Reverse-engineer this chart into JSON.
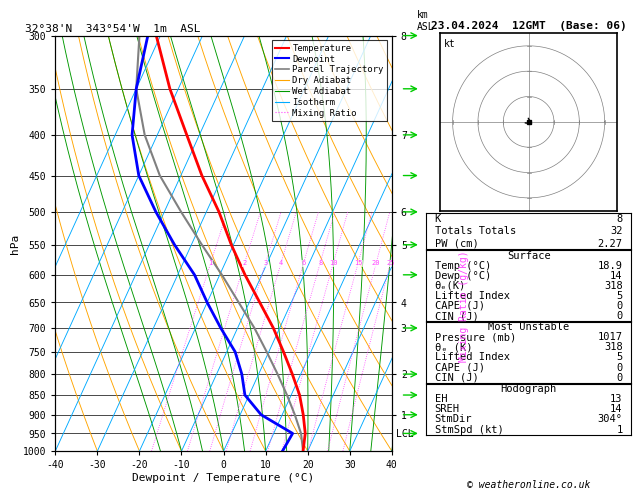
{
  "title_left": "32°38'N  343°54'W  1m  ASL",
  "title_right": "23.04.2024  12GMT  (Base: 06)",
  "xlabel": "Dewpoint / Temperature (°C)",
  "pressure_levels": [
    300,
    350,
    400,
    450,
    500,
    550,
    600,
    650,
    700,
    750,
    800,
    850,
    900,
    950,
    1000
  ],
  "lcl_pressure": 950,
  "temp_profile": {
    "pressure": [
      1000,
      950,
      900,
      850,
      800,
      750,
      700,
      650,
      600,
      550,
      500,
      450,
      400,
      350,
      300
    ],
    "temp": [
      18.9,
      17.5,
      15.0,
      12.0,
      8.0,
      3.5,
      -1.5,
      -7.5,
      -14.0,
      -20.5,
      -27.0,
      -35.0,
      -43.0,
      -52.0,
      -61.0
    ]
  },
  "dewp_profile": {
    "pressure": [
      1000,
      950,
      900,
      850,
      800,
      750,
      700,
      650,
      600,
      550,
      500,
      450,
      400,
      350,
      300
    ],
    "dewp": [
      14.0,
      14.5,
      5.0,
      -1.0,
      -4.0,
      -8.0,
      -14.0,
      -20.0,
      -26.0,
      -34.0,
      -42.0,
      -50.0,
      -56.0,
      -60.0,
      -63.0
    ]
  },
  "parcel_profile": {
    "pressure": [
      1000,
      950,
      900,
      850,
      800,
      750,
      700,
      650,
      600,
      550,
      500,
      450,
      400,
      350,
      300
    ],
    "temp": [
      18.9,
      16.5,
      13.0,
      9.0,
      4.5,
      -0.5,
      -6.0,
      -12.5,
      -19.5,
      -27.5,
      -36.0,
      -45.0,
      -53.0,
      -60.0,
      -65.0
    ]
  },
  "colors": {
    "temp": "#ff0000",
    "dewp": "#0000ff",
    "parcel": "#808080",
    "dry_adiabat": "#ffa500",
    "wet_adiabat": "#009900",
    "isotherm": "#00aaff",
    "mixing_ratio": "#ff44ff",
    "isobar": "#000000",
    "background": "#ffffff"
  },
  "mixing_ratio_lines": [
    1,
    2,
    3,
    4,
    6,
    8,
    10,
    15,
    20,
    25
  ],
  "skew_factor": 45.0,
  "km_ticks": [
    [
      300,
      "8"
    ],
    [
      400,
      "7"
    ],
    [
      500,
      "6"
    ],
    [
      550,
      "5"
    ],
    [
      650,
      "4"
    ],
    [
      700,
      "3"
    ],
    [
      800,
      "2"
    ],
    [
      900,
      "1"
    ]
  ],
  "stats": {
    "K": "8",
    "TT": "32",
    "PW": "2.27",
    "surface_temp": "18.9",
    "surface_dewp": "14",
    "theta_e_surface": "318",
    "lifted_index_surface": "5",
    "CAPE_surface": "0",
    "CIN_surface": "0",
    "mu_pressure": "1017",
    "mu_theta_e": "318",
    "mu_lifted_index": "5",
    "mu_CAPE": "0",
    "mu_CIN": "0",
    "EH": "13",
    "SREH": "14",
    "StmDir": "304°",
    "StmSpd": "1"
  },
  "legend_items": [
    {
      "label": "Temperature",
      "color": "#ff0000",
      "lw": 1.5,
      "ls": "-"
    },
    {
      "label": "Dewpoint",
      "color": "#0000ff",
      "lw": 1.5,
      "ls": "-"
    },
    {
      "label": "Parcel Trajectory",
      "color": "#808080",
      "lw": 1.2,
      "ls": "-"
    },
    {
      "label": "Dry Adiabat",
      "color": "#ffa500",
      "lw": 0.8,
      "ls": "-"
    },
    {
      "label": "Wet Adiabat",
      "color": "#009900",
      "lw": 0.8,
      "ls": "-"
    },
    {
      "label": "Isotherm",
      "color": "#00aaff",
      "lw": 0.8,
      "ls": "-"
    },
    {
      "label": "Mixing Ratio",
      "color": "#ff44ff",
      "lw": 0.8,
      "ls": ":"
    }
  ]
}
